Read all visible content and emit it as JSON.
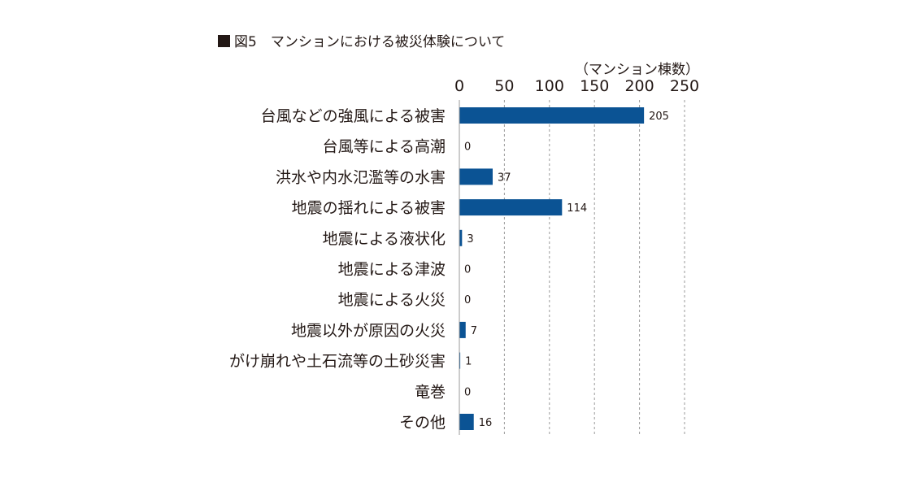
{
  "title": "図5　マンションにおける被災体験について",
  "unit_label": "（マンション棟数）",
  "colors": {
    "bar": "#0b5394",
    "text": "#231815",
    "grid": "#9a9a9a"
  },
  "chart_data": {
    "type": "bar",
    "orientation": "horizontal",
    "title": "図5　マンションにおける被災体験について",
    "xlabel": "（マンション棟数）",
    "ylabel": "",
    "xlim": [
      0,
      250
    ],
    "xticks": [
      0,
      50,
      100,
      150,
      200,
      250
    ],
    "grid": true,
    "categories": [
      "台風などの強風による被害",
      "台風等による高潮",
      "洪水や内水氾濫等の水害",
      "地震の揺れによる被害",
      "地震による液状化",
      "地震による津波",
      "地震による火災",
      "地震以外が原因の火災",
      "がけ崩れや土石流等の土砂災害",
      "竜巻",
      "その他"
    ],
    "values": [
      205,
      0,
      37,
      114,
      3,
      0,
      0,
      7,
      1,
      0,
      16
    ]
  }
}
